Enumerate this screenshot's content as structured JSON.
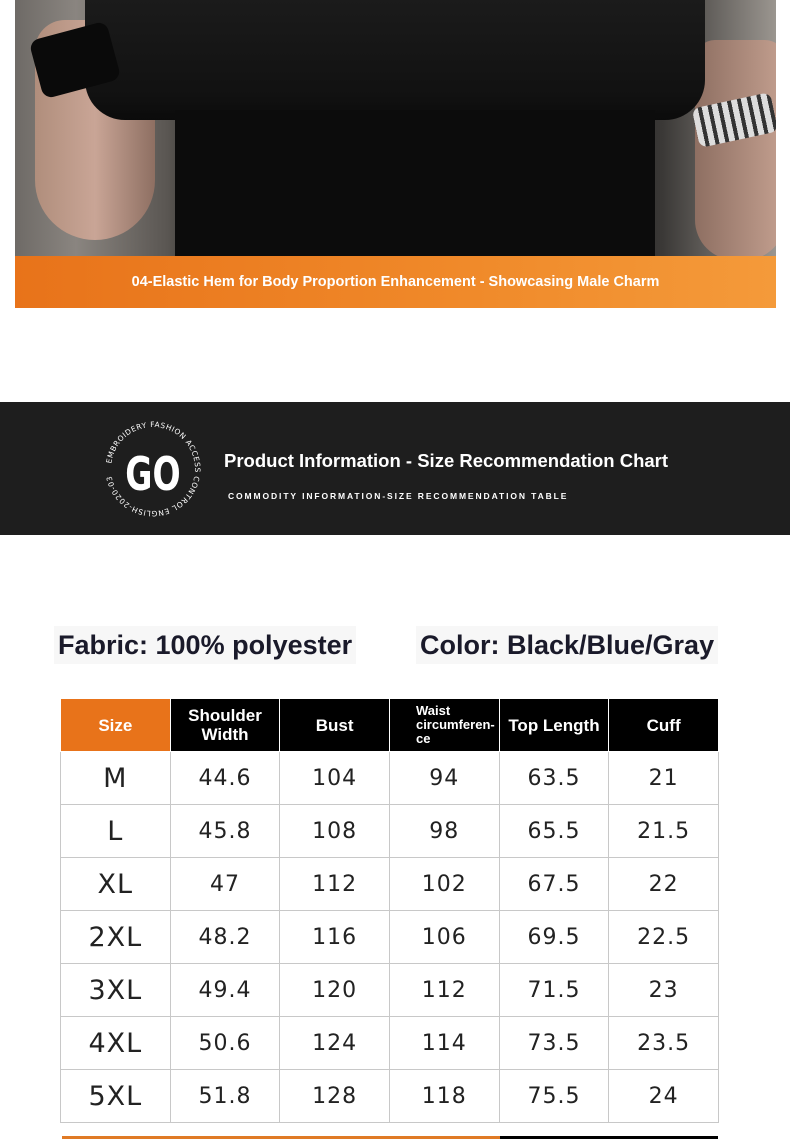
{
  "photo": {
    "caption": "04-Elastic Hem for Body Proportion Enhancement - Showcasing Male Charm"
  },
  "section": {
    "logo_text": "GO",
    "logo_ring_text": "EMBROIDERY FASHION ACCESS CONTROL ENGLISH-2020-03",
    "title": "Product Information - Size Recommendation Chart",
    "subtitle": "COMMODITY INFORMATION-SIZE RECOMMENDATION TABLE"
  },
  "specs": {
    "fabric": "Fabric: 100% polyester",
    "color": "Color: Black/Blue/Gray"
  },
  "colors": {
    "accent": "#e8731a",
    "band": "#1e1e1e"
  },
  "table": {
    "headers": [
      "Size",
      "Shoulder Width",
      "Bust",
      "Waist circumferen-ce",
      "Top Length",
      "Cuff"
    ],
    "rows": [
      [
        "M",
        "44.6",
        "104",
        "94",
        "63.5",
        "21"
      ],
      [
        "L",
        "45.8",
        "108",
        "98",
        "65.5",
        "21.5"
      ],
      [
        "XL",
        "47",
        "112",
        "102",
        "67.5",
        "22"
      ],
      [
        "2XL",
        "48.2",
        "116",
        "106",
        "69.5",
        "22.5"
      ],
      [
        "3XL",
        "49.4",
        "120",
        "112",
        "71.5",
        "23"
      ],
      [
        "4XL",
        "50.6",
        "124",
        "114",
        "73.5",
        "23.5"
      ],
      [
        "5XL",
        "51.8",
        "128",
        "118",
        "75.5",
        "24"
      ]
    ]
  }
}
